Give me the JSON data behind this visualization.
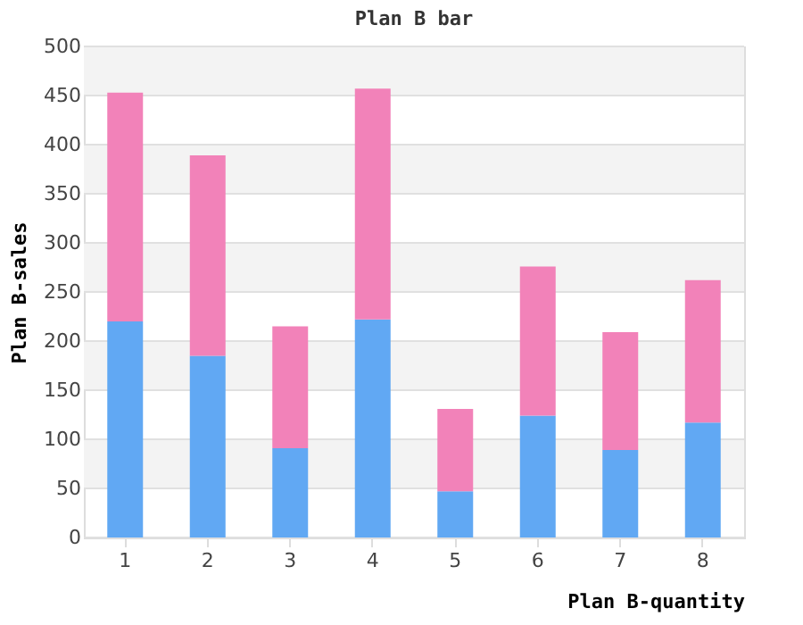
{
  "chart_data": {
    "type": "bar",
    "title": "Plan B bar",
    "xlabel": "Plan B-quantity",
    "ylabel": "Plan B-sales",
    "categories": [
      "1",
      "2",
      "3",
      "4",
      "5",
      "6",
      "7",
      "8"
    ],
    "stacked": true,
    "series": [
      {
        "color": "#61a8f3",
        "values": [
          220,
          185,
          91,
          222,
          47,
          124,
          89,
          117
        ]
      },
      {
        "color": "#f282b9",
        "values": [
          233,
          204,
          124,
          235,
          84,
          152,
          120,
          145
        ]
      }
    ],
    "ylim": [
      0,
      500
    ],
    "yticks": [
      0,
      50,
      100,
      150,
      200,
      250,
      300,
      350,
      400,
      450,
      500
    ],
    "grid": "y"
  }
}
